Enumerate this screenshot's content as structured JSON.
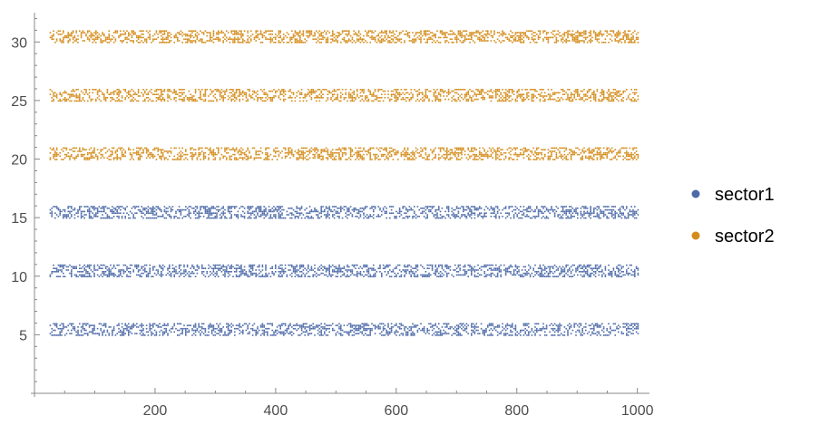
{
  "chart_data": {
    "type": "scatter",
    "title": "",
    "xlabel": "",
    "ylabel": "",
    "xlim": [
      0,
      1020
    ],
    "ylim": [
      0,
      32.5
    ],
    "x_ticks": [
      200,
      400,
      600,
      800,
      1000
    ],
    "y_ticks": [
      5,
      10,
      15,
      20,
      25,
      30
    ],
    "x_tick_labels": [
      "200",
      "400",
      "600",
      "800",
      "1000"
    ],
    "y_tick_labels": [
      "5",
      "10",
      "15",
      "20",
      "25",
      "30"
    ],
    "x_range": [
      25,
      1000
    ],
    "point_band_height": 0.5,
    "grid": false,
    "legend_position": "right",
    "series": [
      {
        "name": "sector1",
        "color": "#4c6aa8",
        "bands": [
          5.5,
          10.5,
          15.5
        ]
      },
      {
        "name": "sector2",
        "color": "#d48c1a",
        "bands": [
          20.5,
          25.5,
          30.5
        ]
      }
    ]
  }
}
